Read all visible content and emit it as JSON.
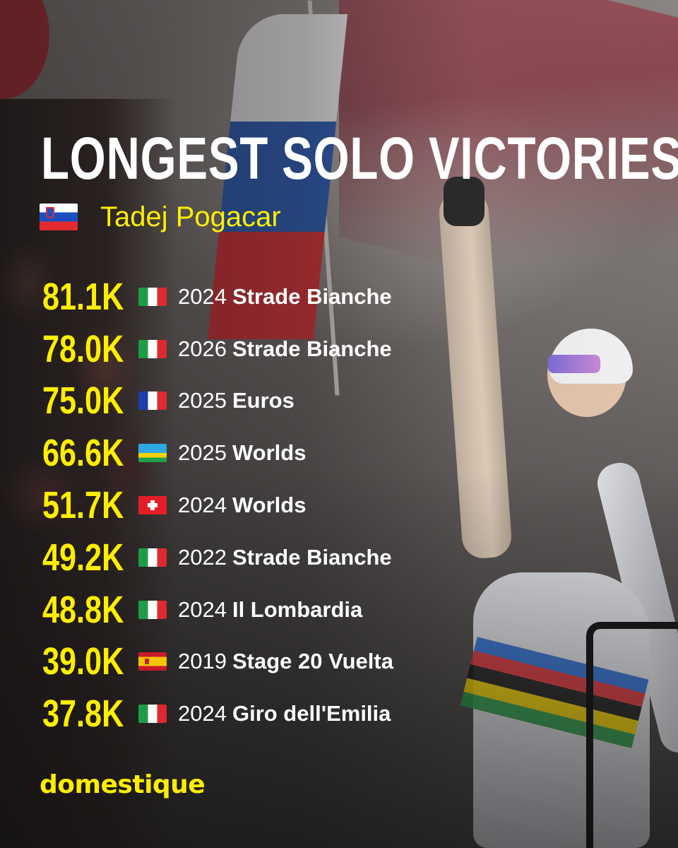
{
  "title": "LONGEST SOLO VICTORIES",
  "rider": {
    "flag": "SI",
    "name": "Tadej Pogacar"
  },
  "wins": [
    {
      "distance": "81.1K",
      "flag": "IT",
      "year": "2024",
      "race": "Strade Bianche"
    },
    {
      "distance": "78.0K",
      "flag": "IT",
      "year": "2026",
      "race": "Strade Bianche"
    },
    {
      "distance": "75.0K",
      "flag": "FR",
      "year": "2025",
      "race": "Euros"
    },
    {
      "distance": "66.6K",
      "flag": "RW",
      "year": "2025",
      "race": "Worlds"
    },
    {
      "distance": "51.7K",
      "flag": "CH",
      "year": "2024",
      "race": "Worlds"
    },
    {
      "distance": "49.2K",
      "flag": "IT",
      "year": "2022",
      "race": "Strade Bianche"
    },
    {
      "distance": "48.8K",
      "flag": "IT",
      "year": "2024",
      "race": "Il Lombardia"
    },
    {
      "distance": "39.0K",
      "flag": "ES",
      "year": "2019",
      "race": "Stage 20 Vuelta"
    },
    {
      "distance": "37.8K",
      "flag": "IT",
      "year": "2024",
      "race": "Giro dell'Emilia"
    }
  ],
  "brand": "domestique",
  "colors": {
    "accent": "#ffee00",
    "text": "#ffffff"
  }
}
